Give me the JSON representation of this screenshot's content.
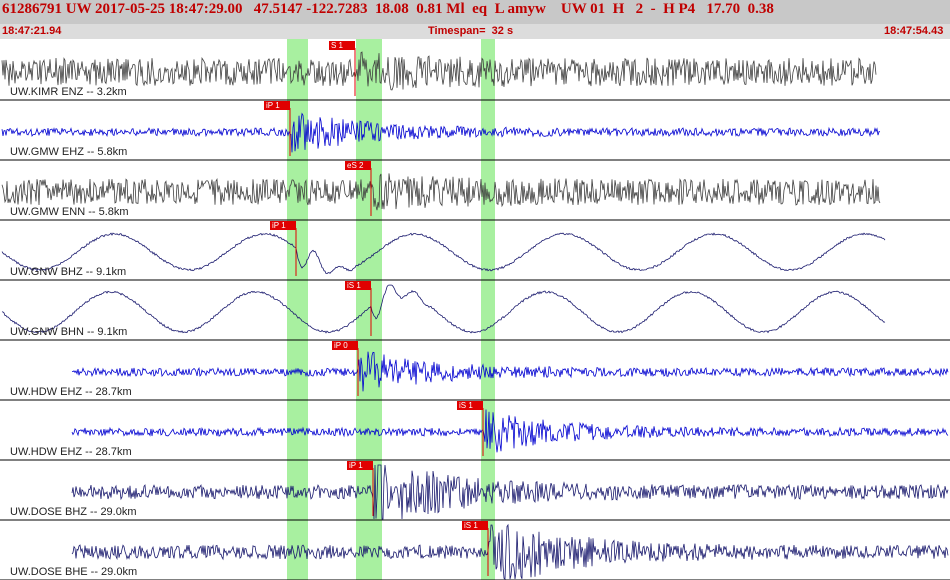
{
  "header": {
    "text": "61286791 UW 2017-05-25 18:47:29.00   47.5147 -122.7283  18.08  0.81 Ml  eq  L amyw    UW 01  H   2  -  H P4   17.70  0.38"
  },
  "subheader": {
    "start_time": "18:47:21.94",
    "timespan": "Timespan=  32 s",
    "end_time": "18:47:54.43"
  },
  "colors": {
    "header_text": "#c00000",
    "pick_marker": "#e00000",
    "pick_window": "#a8f0a0",
    "trace_gray": "#404040",
    "trace_blue": "#0000d0",
    "trace_navy": "#1a1a6e"
  },
  "traces": [
    {
      "label": "UW.KIMR ENZ -- 3.2km",
      "pick": "S 1",
      "color": "gray"
    },
    {
      "label": "UW.GMW EHZ -- 5.8km",
      "pick": "iP 1",
      "color": "blue"
    },
    {
      "label": "UW.GMW ENN -- 5.8km",
      "pick": "eS 2",
      "color": "gray"
    },
    {
      "label": "UW.GNW BHZ -- 9.1km",
      "pick": "iP 1",
      "color": "navy"
    },
    {
      "label": "UW.GNW BHN -- 9.1km",
      "pick": "iS 1",
      "color": "navy"
    },
    {
      "label": "UW.HDW EHZ -- 28.7km",
      "pick": "iP 0",
      "color": "blue"
    },
    {
      "label": "UW.HDW EHZ -- 28.7km",
      "pick": "iS 1",
      "color": "blue"
    },
    {
      "label": "UW.DOSE BHZ -- 29.0km",
      "pick": "iP 1",
      "color": "navy"
    },
    {
      "label": "UW.DOSE BHE -- 29.0km",
      "pick": "iS 1",
      "color": "navy"
    }
  ]
}
